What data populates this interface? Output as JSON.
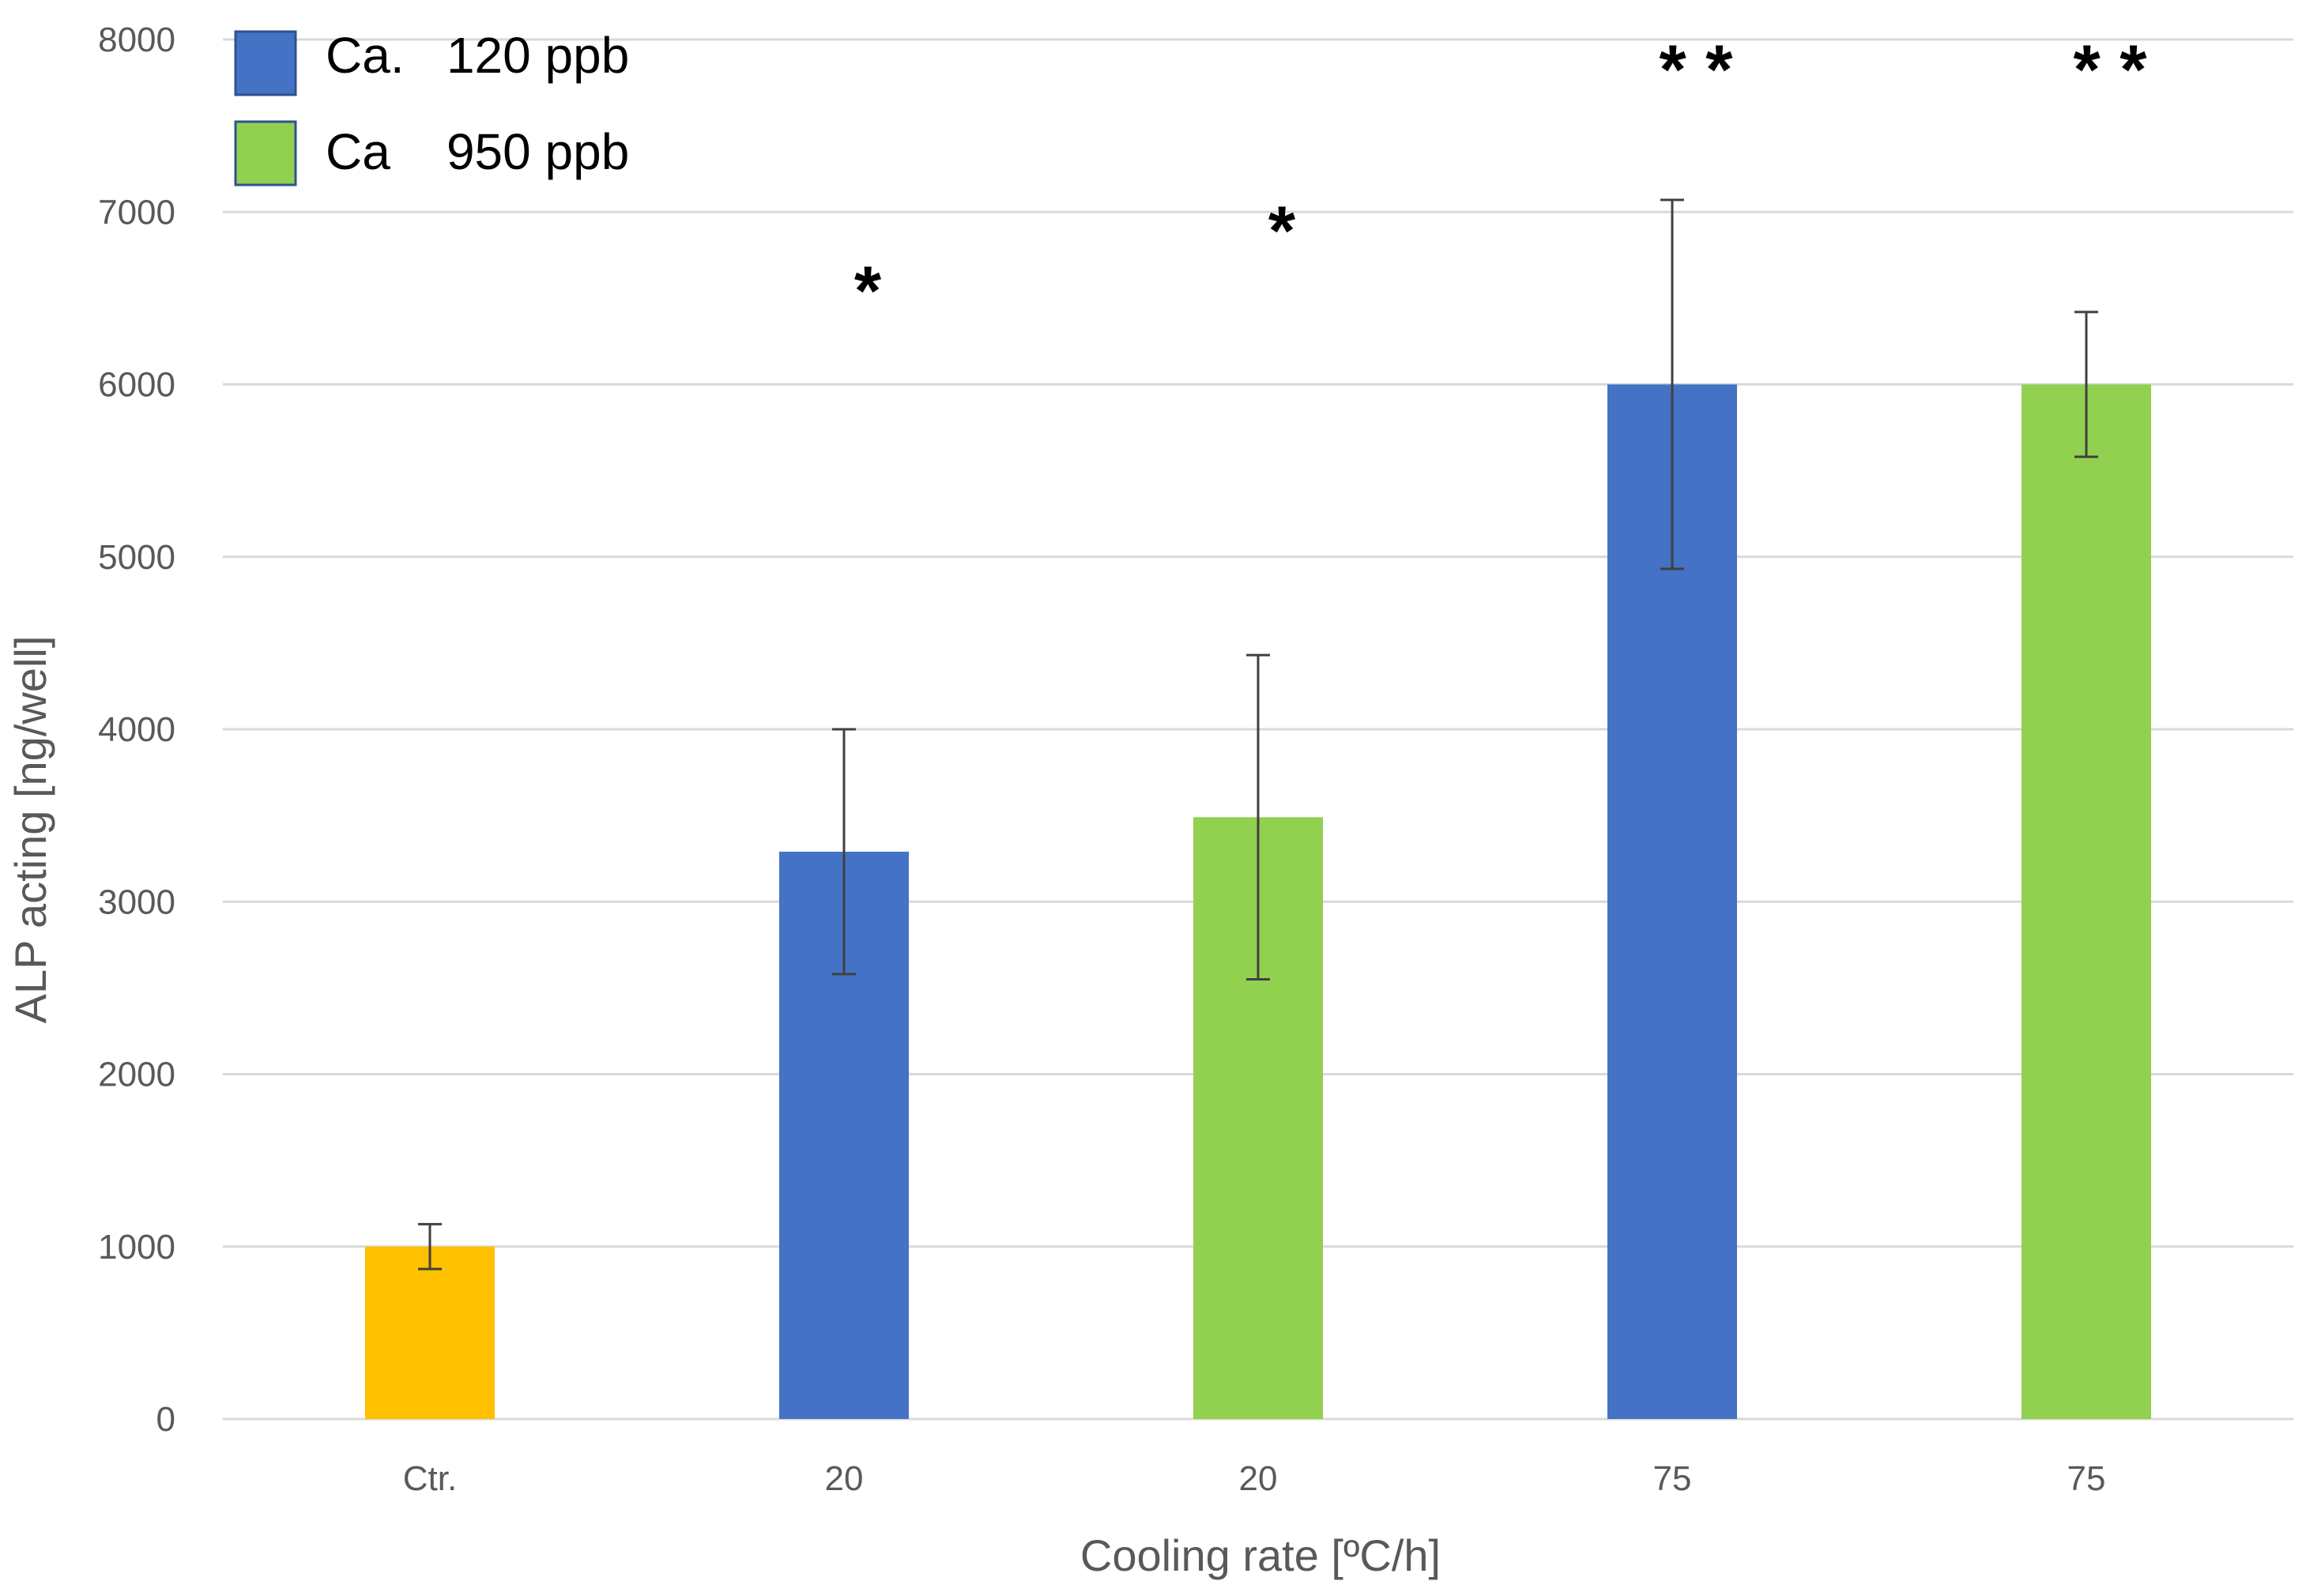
{
  "chart_data": {
    "type": "bar",
    "title": "",
    "xlabel": "Cooling rate [ºC/h]",
    "ylabel": "ALP acting [ng/well]",
    "ylim": [
      0,
      8000
    ],
    "yticks": [
      0,
      1000,
      2000,
      3000,
      4000,
      5000,
      6000,
      7000,
      8000
    ],
    "grid": true,
    "legend_position": "top-left",
    "legend": [
      {
        "label": "Ca.   120 ppb",
        "color": "#4472C4"
      },
      {
        "label": "Ca    950 ppb",
        "color": "#92D050"
      }
    ],
    "bars": [
      {
        "category": "Ctr.",
        "value": 1000,
        "error": 130,
        "color": "#FFC000",
        "significance": ""
      },
      {
        "category": "20",
        "value": 3290,
        "error": 710,
        "color": "#4472C4",
        "significance": "*"
      },
      {
        "category": "20",
        "value": 3490,
        "error": 940,
        "color": "#92D050",
        "significance": "*"
      },
      {
        "category": "75",
        "value": 6000,
        "error": 1070,
        "color": "#4472C4",
        "significance": "**"
      },
      {
        "category": "75",
        "value": 6000,
        "error": 420,
        "color": "#92D050",
        "significance": "**"
      }
    ]
  }
}
